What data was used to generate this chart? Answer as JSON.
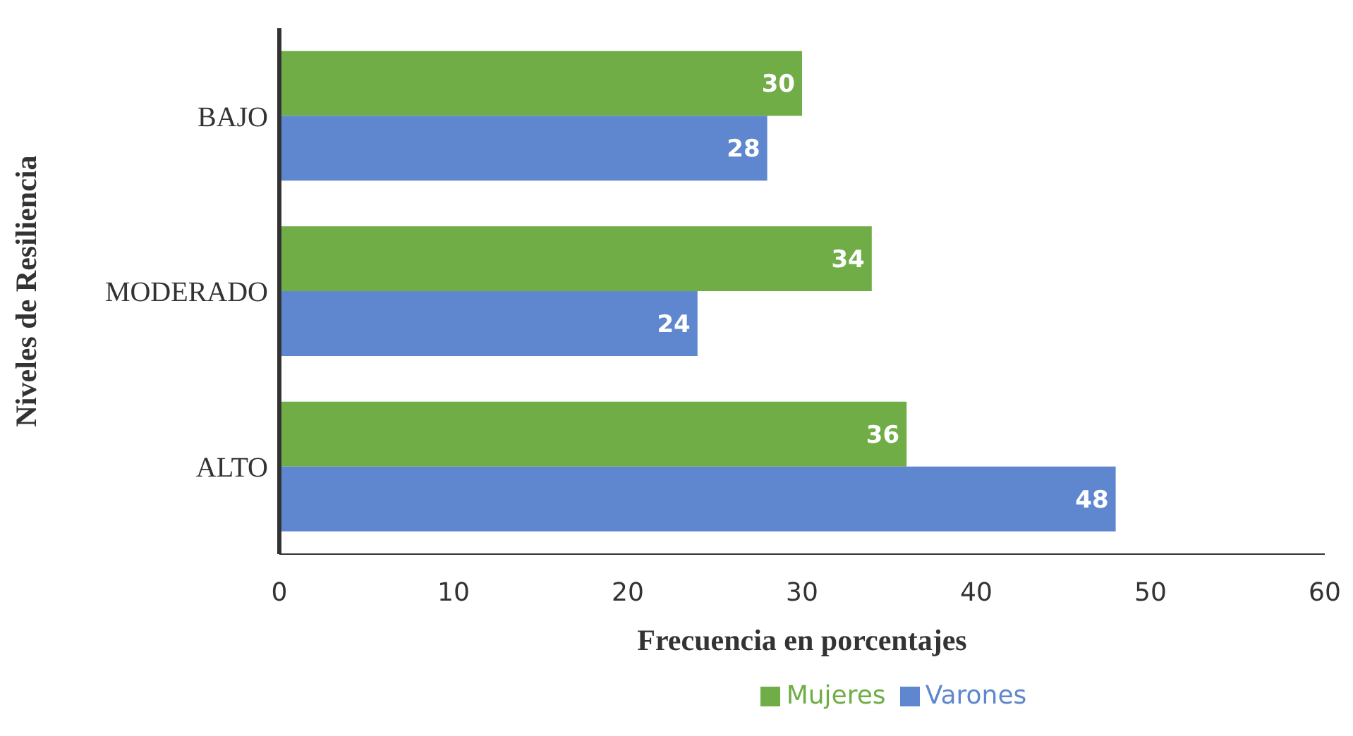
{
  "chart_data": {
    "type": "bar",
    "orientation": "horizontal",
    "xlabel": "Frecuencia en porcentajes",
    "ylabel": "Niveles de Resiliencia",
    "categories": [
      "BAJO",
      "MODERADO",
      "ALTO"
    ],
    "series": [
      {
        "name": "Mujeres",
        "color": "#70ad47",
        "values": [
          30,
          34,
          36
        ]
      },
      {
        "name": "Varones",
        "color": "#5f87cf",
        "values": [
          28,
          24,
          48
        ]
      }
    ],
    "xlim": [
      0,
      60
    ],
    "xticks": [
      0,
      10,
      20,
      30,
      40,
      50,
      60
    ],
    "grid": false,
    "legend": "bottom",
    "data_labels": true
  }
}
